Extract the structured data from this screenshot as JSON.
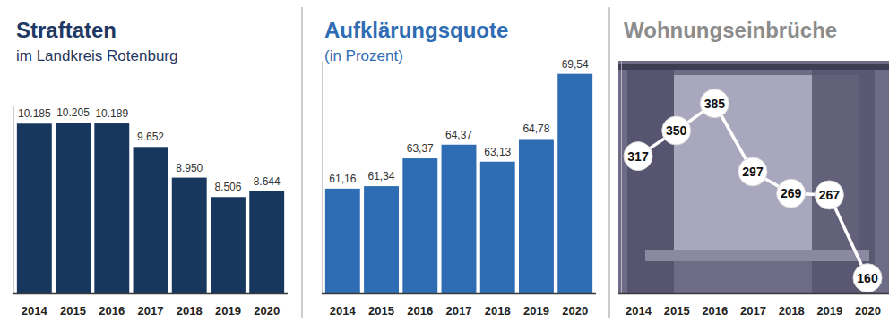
{
  "chart_data": [
    {
      "type": "bar",
      "title": "Straftaten",
      "subtitle": "im Landkreis Rotenburg",
      "categories": [
        "2014",
        "2015",
        "2016",
        "2017",
        "2018",
        "2019",
        "2020"
      ],
      "values": [
        10185,
        10205,
        10189,
        9652,
        8950,
        8506,
        8644
      ],
      "value_labels": [
        "10.185",
        "10.205",
        "10.189",
        "9.652",
        "8.950",
        "8.506",
        "8.644"
      ],
      "color": "#17375e",
      "ylim": [
        6300,
        10600
      ],
      "data_labels": true,
      "tick_labels": "x",
      "grid": false
    },
    {
      "type": "bar",
      "title": "Aufklärungsquote",
      "subtitle": "(in Prozent)",
      "categories": [
        "2014",
        "2015",
        "2016",
        "2017",
        "2018",
        "2019",
        "2020"
      ],
      "values": [
        61.16,
        61.34,
        63.37,
        64.37,
        63.13,
        64.78,
        69.54
      ],
      "value_labels": [
        "61,16",
        "61,34",
        "63,37",
        "64,37",
        "63,13",
        "64,78",
        "69,54"
      ],
      "color": "#2e6db4",
      "ylim": [
        53.5,
        70.5
      ],
      "data_labels": true,
      "tick_labels": "x",
      "grid": false
    },
    {
      "type": "line",
      "title": "Wohnungseinbrüche",
      "categories": [
        "2014",
        "2015",
        "2016",
        "2017",
        "2018",
        "2019",
        "2020"
      ],
      "values": [
        317,
        350,
        385,
        297,
        269,
        267,
        160
      ],
      "color": "#ffffff",
      "marker": "circle",
      "ylim": [
        140,
        440
      ],
      "data_labels": true,
      "tick_labels": "x",
      "grid": false
    }
  ]
}
